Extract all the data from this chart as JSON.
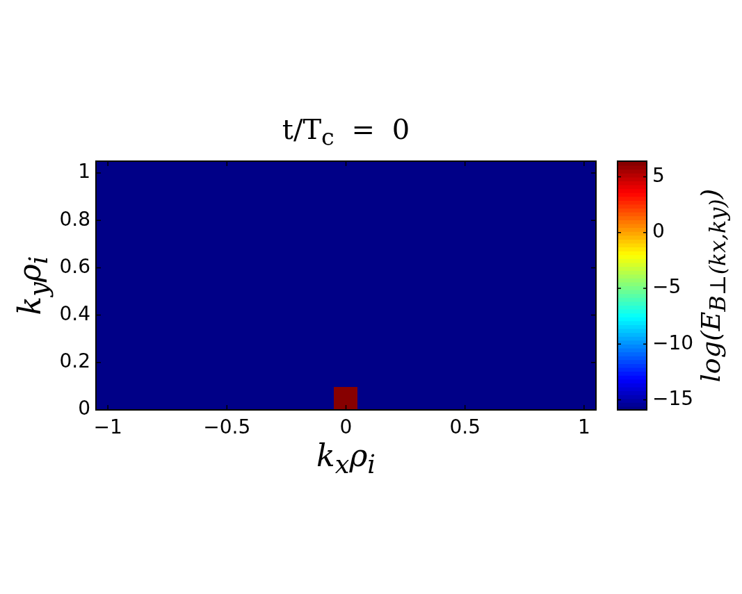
{
  "chart_data": {
    "type": "heatmap",
    "title": "t/T$_{c}$ = 0",
    "xlabel": "k$_{x}$ρ$_{i}$",
    "ylabel": "k$_{y}$ρ$_{i}$",
    "clabel": "log(E$_{B⊥(kx,ky)}$)",
    "cells": [
      [
        -15.9,
        -15.9,
        -15.9,
        -15.9,
        -15.9,
        -15.9,
        -15.9,
        -15.9,
        -15.9,
        -15.9,
        -15.9,
        -15.9,
        -15.9,
        -15.9,
        -15.9,
        -15.9,
        -15.9,
        -15.9,
        -15.9,
        -15.9,
        -15.9
      ],
      [
        -15.9,
        -15.9,
        -15.9,
        -15.9,
        -15.9,
        -15.9,
        -15.9,
        -15.9,
        -15.9,
        -15.9,
        -15.9,
        -15.9,
        -15.9,
        -15.9,
        -15.9,
        -15.9,
        -15.9,
        -15.9,
        -15.9,
        -15.9,
        -15.9
      ],
      [
        -15.9,
        -15.9,
        -15.9,
        -15.9,
        -15.9,
        -15.9,
        -15.9,
        -15.9,
        -15.9,
        -15.9,
        -15.9,
        -15.9,
        -15.9,
        -15.9,
        -15.9,
        -15.9,
        -15.9,
        -15.9,
        -15.9,
        -15.9,
        -15.9
      ],
      [
        -15.9,
        -15.9,
        -15.9,
        -15.9,
        -15.9,
        -15.9,
        -15.9,
        -15.9,
        -15.9,
        -15.9,
        -15.9,
        -15.9,
        -15.9,
        -15.9,
        -15.9,
        -15.9,
        -15.9,
        -15.9,
        -15.9,
        -15.9,
        -15.9
      ],
      [
        -15.9,
        -15.9,
        -15.9,
        -15.9,
        -15.9,
        -15.9,
        -15.9,
        -15.9,
        -15.9,
        -15.9,
        -15.9,
        -15.9,
        -15.9,
        -15.9,
        -15.9,
        -15.9,
        -15.9,
        -15.9,
        -15.9,
        -15.9,
        -15.9
      ],
      [
        -15.9,
        -15.9,
        -15.9,
        -15.9,
        -15.9,
        -15.9,
        -15.9,
        -15.9,
        -15.9,
        -15.9,
        -15.9,
        -15.9,
        -15.9,
        -15.9,
        -15.9,
        -15.9,
        -15.9,
        -15.9,
        -15.9,
        -15.9,
        -15.9
      ],
      [
        -15.9,
        -15.9,
        -15.9,
        -15.9,
        -15.9,
        -15.9,
        -15.9,
        -15.9,
        -15.9,
        -15.9,
        -15.9,
        -15.9,
        -15.9,
        -15.9,
        -15.9,
        -15.9,
        -15.9,
        -15.9,
        -15.9,
        -15.9,
        -15.9
      ],
      [
        -15.9,
        -15.9,
        -15.9,
        -15.9,
        -15.9,
        -15.9,
        -15.9,
        -15.9,
        -15.9,
        -15.9,
        -15.9,
        -15.9,
        -15.9,
        -15.9,
        -15.9,
        -15.9,
        -15.9,
        -15.9,
        -15.9,
        -15.9,
        -15.9
      ],
      [
        -15.9,
        -15.9,
        -15.9,
        -15.9,
        -15.9,
        -15.9,
        -15.9,
        -15.9,
        -15.9,
        -15.9,
        -15.9,
        -15.9,
        -15.9,
        -15.9,
        -15.9,
        -15.9,
        -15.9,
        -15.9,
        -15.9,
        -15.9,
        -15.9
      ],
      [
        -15.9,
        -15.9,
        -15.9,
        -15.9,
        -15.9,
        -15.9,
        -15.9,
        -15.9,
        -15.9,
        -15.9,
        -15.9,
        -15.9,
        -15.9,
        -15.9,
        -15.9,
        -15.9,
        -15.9,
        -15.9,
        -15.9,
        -15.9,
        -15.9
      ],
      [
        -15.9,
        -15.9,
        -15.9,
        -15.9,
        -15.9,
        -15.9,
        -15.9,
        -15.9,
        -15.9,
        -15.9,
        6.4,
        -15.9,
        -15.9,
        -15.9,
        -15.9,
        -15.9,
        -15.9,
        -15.9,
        -15.9,
        -15.9,
        -15.9
      ]
    ],
    "clim": [
      -15.9,
      6.4
    ],
    "cticks": [
      -15,
      -10,
      -5,
      0,
      5
    ],
    "xlim": [
      -1.05,
      1.05
    ],
    "xticks": [
      -1,
      -0.5,
      0,
      0.5,
      1
    ],
    "ylim": [
      0,
      1.05
    ],
    "yticks": [
      0,
      0.2,
      0.4,
      0.6,
      0.8,
      1
    ]
  }
}
